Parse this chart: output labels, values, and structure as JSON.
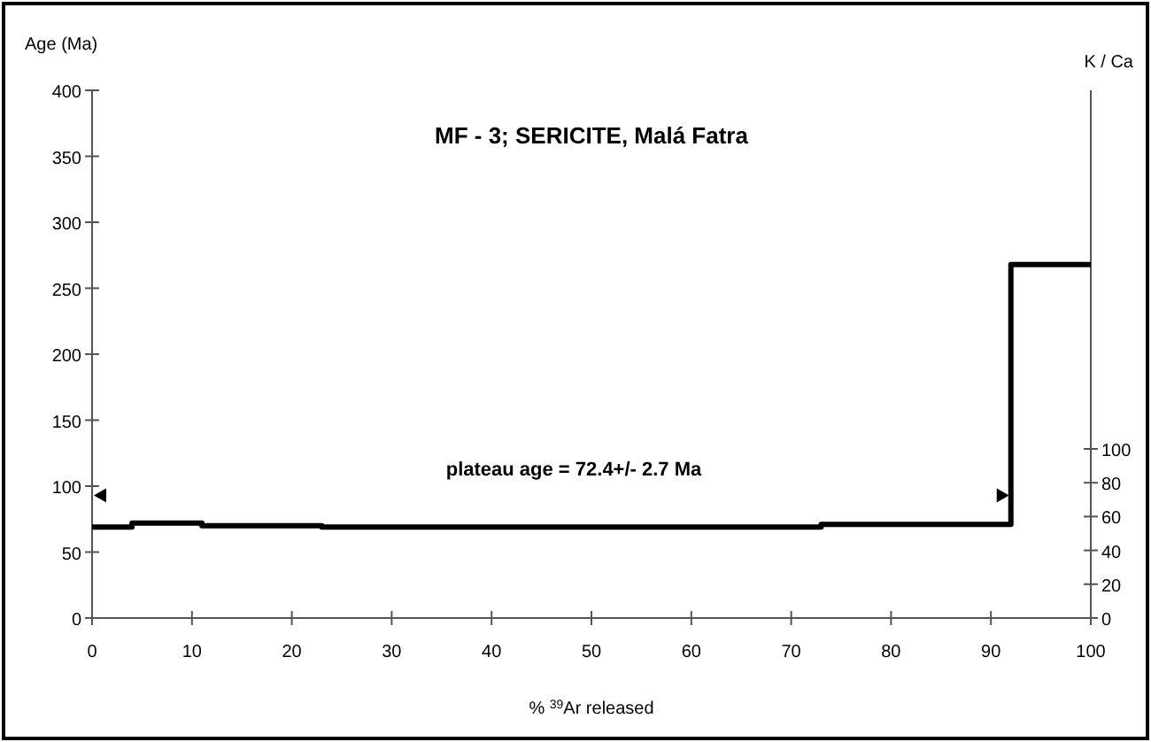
{
  "chart_data": {
    "type": "step",
    "title": "MF - 3; SERICITE, Malá Fatra",
    "xlabel": "% $^{39}$Ar released",
    "ylabel": "Age (Ma)",
    "y2label": "K / Ca",
    "x": [
      0,
      4,
      11,
      23,
      73,
      92,
      100
    ],
    "series": [
      {
        "color": "#000000",
        "values": [
          69,
          72,
          70,
          69,
          71,
          268,
          268
        ]
      }
    ],
    "xlim": [
      0,
      100
    ],
    "xticks": [
      0,
      10,
      20,
      30,
      40,
      50,
      60,
      70,
      80,
      90,
      100
    ],
    "ylim": [
      0,
      400
    ],
    "yticks": [
      0,
      50,
      100,
      150,
      200,
      250,
      300,
      350,
      400
    ],
    "y2lim": [
      0,
      312
    ],
    "y2ticks": [
      0,
      20,
      40,
      60,
      80,
      100
    ],
    "annotations": [
      "plateau age = 72.4+/- 2.7 Ma"
    ],
    "grid": false
  }
}
